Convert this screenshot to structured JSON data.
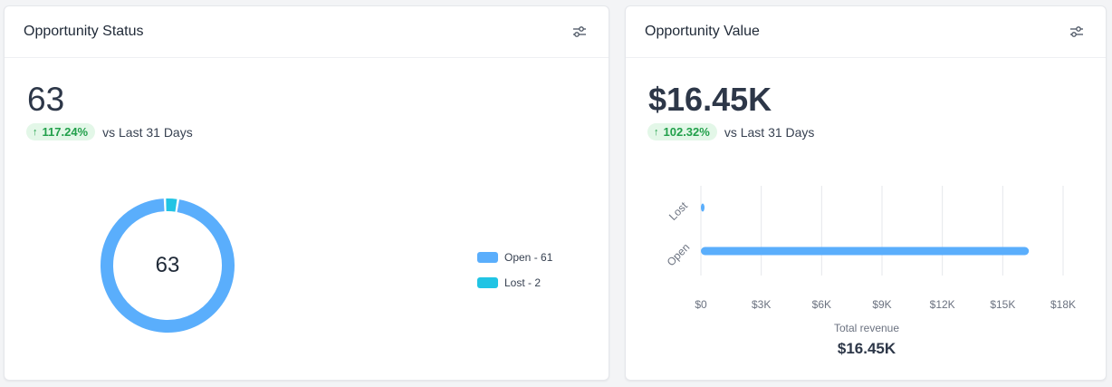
{
  "status_card": {
    "title": "Opportunity Status",
    "total": "63",
    "trend_percent": "117.24%",
    "trend_compare": "vs Last 31 Days",
    "donut_center": "63",
    "settings_icon": "sliders-icon"
  },
  "value_card": {
    "title": "Opportunity Value",
    "total": "$16.45K",
    "trend_percent": "102.32%",
    "trend_compare": "vs Last 31 Days",
    "total_revenue_label": "Total revenue",
    "total_revenue_value": "$16.45K",
    "settings_icon": "sliders-icon"
  },
  "colors": {
    "open": "#5aaefc",
    "lost": "#21c4e4",
    "trend_up": "#22a04b"
  },
  "chart_data": [
    {
      "type": "pie",
      "variant": "donut",
      "categories": [
        "Open",
        "Lost"
      ],
      "values": [
        61,
        2
      ],
      "legend": [
        "Open - 61",
        "Lost - 2"
      ],
      "legend_placement": "right",
      "center_label": "63"
    },
    {
      "type": "bar",
      "orientation": "horizontal",
      "categories": [
        "Lost",
        "Open"
      ],
      "values": [
        150,
        16300
      ],
      "xlim": [
        0,
        18000
      ],
      "x_ticks": [
        0,
        3000,
        6000,
        9000,
        12000,
        15000,
        18000
      ],
      "x_tick_labels": [
        "$0",
        "$3K",
        "$6K",
        "$9K",
        "$12K",
        "$15K",
        "$18K"
      ],
      "grid": true,
      "xlabel": "",
      "ylabel": ""
    }
  ]
}
